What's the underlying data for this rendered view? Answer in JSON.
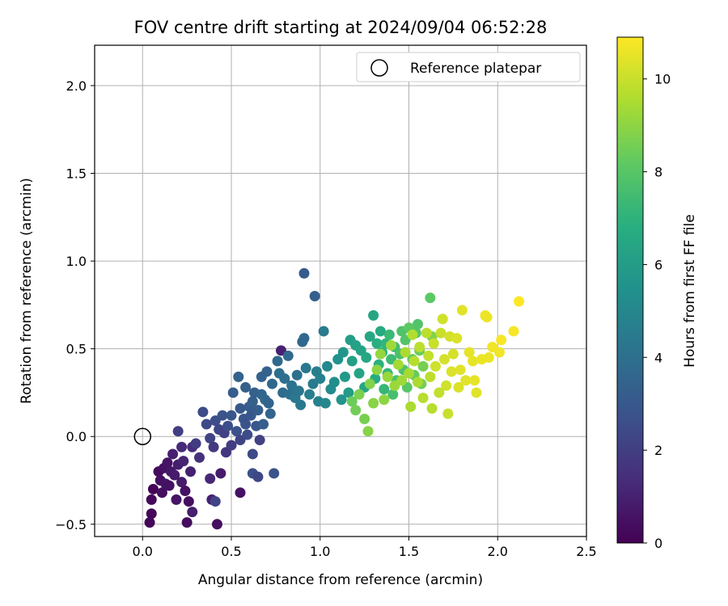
{
  "chart_data": {
    "type": "scatter",
    "title": "FOV centre drift starting at 2024/09/04 06:52:28",
    "xlabel": "Angular distance from reference (arcmin)",
    "ylabel": "Rotation from reference (arcmin)",
    "colorbar_label": "Hours from first FF file",
    "xlim": [
      -0.27,
      2.5
    ],
    "ylim": [
      -0.57,
      2.23
    ],
    "clim": [
      0,
      10.9
    ],
    "colormap": "viridis",
    "grid": true,
    "legend_position": "top-right",
    "x_ticks": [
      "0.0",
      "0.5",
      "1.0",
      "1.5",
      "2.0",
      "2.5"
    ],
    "y_ticks": [
      "−0.5",
      "0.0",
      "0.5",
      "1.0",
      "1.5",
      "2.0"
    ],
    "colorbar_ticks": [
      "0",
      "2",
      "4",
      "6",
      "8",
      "10"
    ],
    "reference": {
      "name": "Reference platepar",
      "x": 0.0,
      "y": 0.0
    },
    "series": [
      {
        "points": [
          [
            0.04,
            -0.49,
            0.1
          ],
          [
            0.05,
            -0.44,
            0.2
          ],
          [
            0.05,
            -0.36,
            0.2
          ],
          [
            0.06,
            -0.3,
            0.1
          ],
          [
            0.09,
            -0.2,
            0.3
          ],
          [
            0.1,
            -0.25,
            0.4
          ],
          [
            0.11,
            -0.32,
            0.4
          ],
          [
            0.12,
            -0.18,
            0.5
          ],
          [
            0.13,
            -0.27,
            0.6
          ],
          [
            0.14,
            -0.15,
            0.6
          ],
          [
            0.15,
            -0.28,
            0.5
          ],
          [
            0.16,
            -0.2,
            0.7
          ],
          [
            0.17,
            -0.1,
            1.0
          ],
          [
            0.18,
            -0.22,
            0.8
          ],
          [
            0.19,
            -0.36,
            0.6
          ],
          [
            0.2,
            -0.16,
            0.9
          ],
          [
            0.22,
            -0.26,
            0.8
          ],
          [
            0.23,
            -0.14,
            1.1
          ],
          [
            0.24,
            -0.31,
            0.5
          ],
          [
            0.25,
            -0.49,
            0.3
          ],
          [
            0.26,
            -0.37,
            0.4
          ],
          [
            0.27,
            -0.2,
            1.0
          ],
          [
            0.28,
            -0.43,
            0.9
          ],
          [
            0.28,
            -0.06,
            1.4
          ],
          [
            0.32,
            -0.12,
            1.5
          ],
          [
            0.38,
            -0.24,
            1.2
          ],
          [
            0.39,
            -0.36,
            1.0
          ],
          [
            0.44,
            -0.21,
            0.8
          ],
          [
            0.42,
            -0.5,
            0.4
          ],
          [
            0.55,
            -0.32,
            0.5
          ],
          [
            0.2,
            0.03,
            2.0
          ],
          [
            0.22,
            -0.06,
            1.3
          ],
          [
            0.3,
            -0.04,
            1.9
          ],
          [
            0.34,
            0.14,
            2.5
          ],
          [
            0.36,
            0.07,
            2.4
          ],
          [
            0.38,
            -0.01,
            2.2
          ],
          [
            0.4,
            -0.06,
            1.8
          ],
          [
            0.41,
            0.09,
            2.6
          ],
          [
            0.43,
            0.04,
            2.3
          ],
          [
            0.45,
            0.12,
            2.8
          ],
          [
            0.46,
            0.02,
            2.1
          ],
          [
            0.47,
            -0.09,
            1.7
          ],
          [
            0.48,
            0.06,
            2.6
          ],
          [
            0.5,
            0.12,
            2.9
          ],
          [
            0.5,
            -0.05,
            1.9
          ],
          [
            0.51,
            0.25,
            3.2
          ],
          [
            0.53,
            0.03,
            2.7
          ],
          [
            0.54,
            0.34,
            3.4
          ],
          [
            0.55,
            0.16,
            3.0
          ],
          [
            0.55,
            -0.02,
            2.2
          ],
          [
            0.57,
            0.1,
            2.9
          ],
          [
            0.58,
            0.07,
            2.8
          ],
          [
            0.58,
            0.28,
            3.3
          ],
          [
            0.59,
            0.01,
            2.5
          ],
          [
            0.6,
            0.17,
            3.1
          ],
          [
            0.61,
            0.12,
            3.0
          ],
          [
            0.62,
            -0.1,
            2.4
          ],
          [
            0.62,
            0.2,
            3.3
          ],
          [
            0.63,
            0.25,
            3.3
          ],
          [
            0.64,
            0.06,
            3.0
          ],
          [
            0.65,
            0.15,
            3.2
          ],
          [
            0.66,
            -0.02,
            2.1
          ],
          [
            0.67,
            0.24,
            3.5
          ],
          [
            0.67,
            0.34,
            3.4
          ],
          [
            0.68,
            0.07,
            3.2
          ],
          [
            0.69,
            0.21,
            3.6
          ],
          [
            0.7,
            0.37,
            3.4
          ],
          [
            0.71,
            0.19,
            3.5
          ],
          [
            0.72,
            0.13,
            3.5
          ],
          [
            0.73,
            0.3,
            3.6
          ],
          [
            0.74,
            -0.21,
            2.8
          ],
          [
            0.62,
            -0.21,
            2.6
          ],
          [
            0.65,
            -0.23,
            2.3
          ],
          [
            0.41,
            -0.37,
            2.2
          ],
          [
            0.76,
            0.43,
            3.7
          ],
          [
            0.77,
            0.36,
            3.9
          ],
          [
            0.78,
            0.49,
            1.0
          ],
          [
            0.79,
            0.25,
            3.8
          ],
          [
            0.8,
            0.33,
            3.9
          ],
          [
            0.82,
            0.46,
            3.7
          ],
          [
            0.83,
            0.24,
            4.0
          ],
          [
            0.84,
            0.29,
            4.1
          ],
          [
            0.86,
            0.22,
            4.3
          ],
          [
            0.87,
            0.35,
            4.0
          ],
          [
            0.88,
            0.26,
            4.2
          ],
          [
            0.89,
            0.18,
            4.4
          ],
          [
            0.9,
            0.54,
            3.6
          ],
          [
            0.91,
            0.56,
            3.7
          ],
          [
            0.92,
            0.39,
            4.3
          ],
          [
            0.91,
            0.93,
            3.1
          ],
          [
            0.97,
            0.8,
            3.3
          ],
          [
            0.94,
            0.24,
            4.6
          ],
          [
            0.96,
            0.3,
            4.5
          ],
          [
            0.98,
            0.37,
            4.6
          ],
          [
            0.99,
            0.2,
            4.8
          ],
          [
            1.0,
            0.33,
            4.7
          ],
          [
            1.02,
            0.6,
            4.5
          ],
          [
            1.03,
            0.19,
            5.0
          ],
          [
            1.04,
            0.4,
            5.1
          ],
          [
            1.06,
            0.27,
            5.2
          ],
          [
            1.08,
            0.31,
            5.3
          ],
          [
            1.1,
            0.44,
            5.5
          ],
          [
            1.12,
            0.21,
            5.6
          ],
          [
            1.13,
            0.48,
            5.7
          ],
          [
            1.14,
            0.34,
            5.8
          ],
          [
            1.16,
            0.25,
            5.9
          ],
          [
            1.17,
            0.55,
            6.0
          ],
          [
            1.18,
            0.43,
            6.1
          ],
          [
            1.2,
            0.52,
            6.2
          ],
          [
            1.22,
            0.36,
            6.3
          ],
          [
            1.23,
            0.49,
            6.3
          ],
          [
            1.25,
            0.28,
            6.4
          ],
          [
            1.26,
            0.45,
            6.5
          ],
          [
            1.28,
            0.57,
            6.5
          ],
          [
            1.3,
            0.69,
            6.4
          ],
          [
            1.31,
            0.33,
            6.7
          ],
          [
            1.32,
            0.53,
            6.8
          ],
          [
            1.33,
            0.41,
            6.9
          ],
          [
            1.34,
            0.6,
            6.6
          ],
          [
            1.35,
            0.48,
            7.0
          ],
          [
            1.36,
            0.27,
            7.2
          ],
          [
            1.37,
            0.53,
            7.1
          ],
          [
            1.38,
            0.36,
            7.2
          ],
          [
            1.39,
            0.58,
            7.3
          ],
          [
            1.4,
            0.44,
            7.4
          ],
          [
            1.41,
            0.24,
            7.6
          ],
          [
            1.42,
            0.51,
            7.5
          ],
          [
            1.43,
            0.32,
            7.7
          ],
          [
            1.45,
            0.47,
            7.7
          ],
          [
            1.46,
            0.6,
            7.8
          ],
          [
            1.47,
            0.38,
            7.8
          ],
          [
            1.48,
            0.55,
            7.9
          ],
          [
            1.49,
            0.28,
            8.0
          ],
          [
            1.5,
            0.62,
            8.1
          ],
          [
            1.52,
            0.44,
            8.2
          ],
          [
            1.53,
            0.35,
            8.3
          ],
          [
            1.54,
            0.59,
            8.0
          ],
          [
            1.55,
            0.64,
            7.9
          ],
          [
            1.56,
            0.49,
            8.4
          ],
          [
            1.57,
            0.3,
            8.5
          ],
          [
            1.58,
            0.4,
            8.6
          ],
          [
            1.62,
            0.79,
            8.1
          ],
          [
            1.63,
            0.57,
            8.8
          ],
          [
            1.18,
            0.2,
            8.4
          ],
          [
            1.2,
            0.15,
            8.5
          ],
          [
            1.22,
            0.24,
            8.7
          ],
          [
            1.25,
            0.1,
            8.6
          ],
          [
            1.27,
            0.03,
            8.9
          ],
          [
            1.28,
            0.3,
            8.8
          ],
          [
            1.3,
            0.19,
            8.9
          ],
          [
            1.32,
            0.38,
            9.0
          ],
          [
            1.34,
            0.47,
            9.1
          ],
          [
            1.36,
            0.21,
            9.0
          ],
          [
            1.38,
            0.34,
            9.2
          ],
          [
            1.4,
            0.52,
            9.3
          ],
          [
            1.42,
            0.29,
            9.2
          ],
          [
            1.44,
            0.41,
            9.4
          ],
          [
            1.46,
            0.32,
            9.3
          ],
          [
            1.48,
            0.48,
            9.5
          ],
          [
            1.5,
            0.36,
            9.4
          ],
          [
            1.51,
            0.17,
            9.5
          ],
          [
            1.52,
            0.58,
            9.6
          ],
          [
            1.53,
            0.43,
            9.7
          ],
          [
            1.55,
            0.31,
            9.5
          ],
          [
            1.56,
            0.51,
            9.8
          ],
          [
            1.58,
            0.22,
            9.7
          ],
          [
            1.6,
            0.59,
            9.8
          ],
          [
            1.61,
            0.46,
            9.9
          ],
          [
            1.62,
            0.34,
            9.8
          ],
          [
            1.63,
            0.16,
            9.7
          ],
          [
            1.64,
            0.53,
            10.0
          ],
          [
            1.65,
            0.4,
            10.1
          ],
          [
            1.67,
            0.25,
            9.9
          ],
          [
            1.68,
            0.59,
            10.0
          ],
          [
            1.69,
            0.67,
            10.1
          ],
          [
            1.7,
            0.44,
            10.2
          ],
          [
            1.71,
            0.29,
            10.1
          ],
          [
            1.72,
            0.13,
            10.0
          ],
          [
            1.73,
            0.57,
            10.2
          ],
          [
            1.74,
            0.37,
            10.3
          ],
          [
            1.75,
            0.47,
            10.2
          ],
          [
            1.77,
            0.56,
            10.3
          ],
          [
            1.78,
            0.28,
            10.3
          ],
          [
            1.79,
            0.38,
            10.4
          ],
          [
            1.8,
            0.72,
            10.4
          ],
          [
            1.82,
            0.32,
            10.4
          ],
          [
            1.84,
            0.48,
            10.5
          ],
          [
            1.86,
            0.43,
            10.5
          ],
          [
            1.87,
            0.32,
            10.5
          ],
          [
            1.88,
            0.25,
            10.4
          ],
          [
            1.91,
            0.44,
            10.6
          ],
          [
            1.93,
            0.69,
            10.7
          ],
          [
            1.94,
            0.68,
            10.6
          ],
          [
            1.95,
            0.45,
            10.6
          ],
          [
            1.97,
            0.51,
            10.7
          ],
          [
            2.01,
            0.48,
            10.7
          ],
          [
            2.02,
            0.55,
            10.8
          ],
          [
            2.09,
            0.6,
            10.8
          ],
          [
            2.12,
            0.77,
            10.9
          ]
        ]
      }
    ]
  }
}
